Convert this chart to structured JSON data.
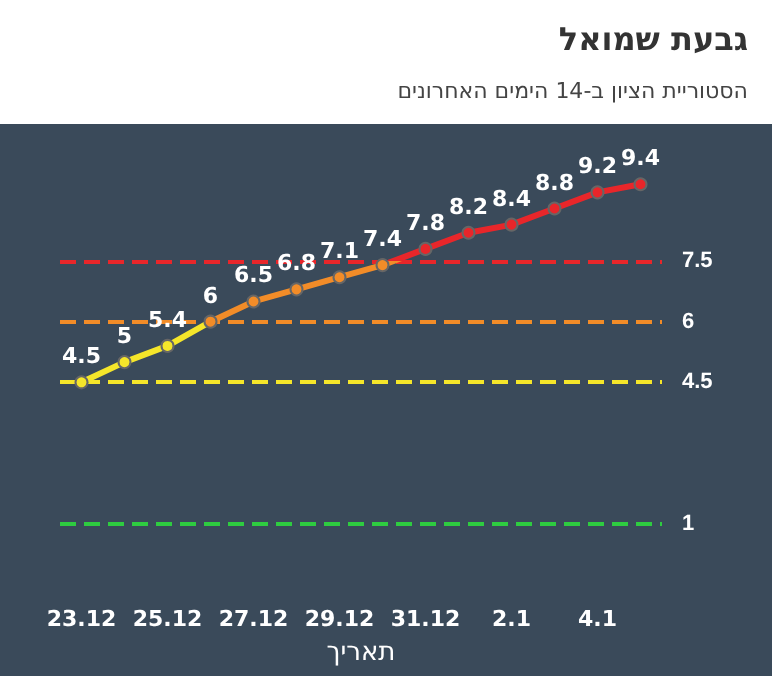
{
  "chart_data": {
    "type": "line",
    "title": "גבעת שמואל",
    "subtitle": "הסטוריית הציון ב-14 הימים האחרונים",
    "xlabel": "תאריך",
    "categories": [
      "23.12",
      null,
      "25.12",
      null,
      "27.12",
      null,
      "29.12",
      null,
      "31.12",
      null,
      "2.1",
      null,
      "4.1",
      null
    ],
    "series": [
      {
        "values": [
          4.5,
          5,
          5.4,
          6,
          6.5,
          6.8,
          7.1,
          7.4,
          7.8,
          8.2,
          8.4,
          8.8,
          9.2,
          9.4
        ]
      }
    ],
    "tick_labels": "x",
    "data_labels": true,
    "marker": "circle",
    "grid": false,
    "ref_lines": [
      {
        "axis": "y",
        "value": 7.5,
        "label": "7.5",
        "color": "#e8262a",
        "line_style": "dashed"
      },
      {
        "axis": "y",
        "value": 6,
        "label": "6",
        "color": "#f28c28",
        "line_style": "dashed"
      },
      {
        "axis": "y",
        "value": 4.5,
        "label": "4.5",
        "color": "#f5e62a",
        "line_style": "dashed"
      },
      {
        "axis": "y",
        "value": 1,
        "label": "1",
        "color": "#2ecc40",
        "line_style": "dashed"
      }
    ]
  }
}
